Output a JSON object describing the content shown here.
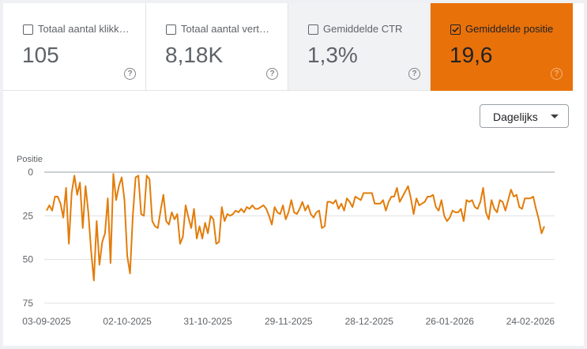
{
  "metrics": [
    {
      "label": "Totaal aantal klikk…",
      "value": "105",
      "checked": false
    },
    {
      "label": "Totaal aantal vert…",
      "value": "8,18K",
      "checked": false
    },
    {
      "label": "Gemiddelde CTR",
      "value": "1,3%",
      "checked": false
    },
    {
      "label": "Gemiddelde positie",
      "value": "19,6",
      "checked": true
    }
  ],
  "help_glyph": "?",
  "granularity": {
    "label": "Dagelijks"
  },
  "colors": {
    "accent": "#e8710a",
    "line": "#e37c0a",
    "grid": "#e0e0e0"
  },
  "icons": {
    "checkbox": "checkbox-icon",
    "help": "help-circle-icon",
    "dropdown": "caret-down-icon"
  },
  "chart_data": {
    "type": "line",
    "ylabel": "Positie",
    "ylim": [
      0,
      75
    ],
    "y_inverted": true,
    "yticks": [
      0,
      25,
      50,
      75
    ],
    "x_start": "2025-09-03",
    "x_end": "2026-03-01",
    "xtick_labels": [
      "03-09-2025",
      "02-10-2025",
      "31-10-2025",
      "29-11-2025",
      "28-12-2025",
      "26-01-2026",
      "24-02-2026"
    ],
    "grid": true,
    "series": [
      {
        "values": [
          22,
          19,
          22,
          14,
          14,
          18,
          26,
          9,
          41,
          12,
          2,
          13,
          6,
          32,
          8,
          23,
          45,
          62,
          28,
          53,
          40,
          35,
          15,
          52,
          1,
          16,
          8,
          3,
          16,
          48,
          58,
          25,
          3,
          2,
          24,
          25,
          2,
          4,
          28,
          31,
          32,
          22,
          13,
          28,
          30,
          23,
          27,
          24,
          41,
          37,
          19,
          26,
          32,
          21,
          38,
          31,
          38,
          29,
          35,
          25,
          27,
          41,
          40,
          20,
          28,
          24,
          25,
          24,
          22,
          23,
          21,
          23,
          20,
          21,
          19,
          21,
          21,
          20,
          19,
          21,
          25,
          30,
          20,
          23,
          24,
          19,
          27,
          23,
          16,
          23,
          24,
          21,
          17,
          22,
          19,
          24,
          26,
          23,
          22,
          32,
          31,
          17,
          17,
          18,
          16,
          21,
          18,
          22,
          15,
          17,
          20,
          14,
          15,
          16,
          12,
          12,
          12,
          12,
          18,
          18,
          18,
          16,
          22,
          17,
          14,
          14,
          9,
          17,
          14,
          11,
          8,
          15,
          24,
          15,
          19,
          18,
          17,
          14,
          14,
          13,
          20,
          22,
          16,
          25,
          28,
          26,
          22,
          23,
          23,
          21,
          28,
          16,
          17,
          16,
          20,
          21,
          17,
          9,
          23,
          27,
          16,
          21,
          23,
          16,
          17,
          22,
          16,
          10,
          14,
          13,
          20,
          21,
          15,
          15,
          15,
          14,
          21,
          27,
          35,
          31
        ]
      }
    ]
  }
}
